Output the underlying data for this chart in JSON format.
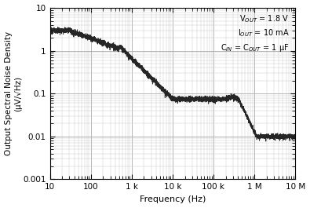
{
  "xlim": [
    10,
    10000000
  ],
  "ylim": [
    0.001,
    10
  ],
  "xlabel": "Frequency (Hz)",
  "ylabel": "Output Spectral Noise Density\n(μV/√Hz)",
  "annotation_lines": [
    "V$_{OUT}$ = 1.8 V",
    "I$_{OUT}$ = 10 mA",
    "C$_{IN}$ = C$_{OUT}$ = 1 μF"
  ],
  "xtick_labels": {
    "10": "10",
    "100": "100",
    "1000": "1 k",
    "10000": "10 k",
    "100000": "100 k",
    "1000000": "1 M",
    "10000000": "10 M"
  },
  "ytick_labels": {
    "10": "10",
    "1": "1",
    "0.1": "0.1",
    "0.01": "0.01",
    "0.001": "0.001"
  },
  "line_color": "#1a1a1a",
  "background_color": "#ffffff",
  "grid_major_color": "#aaaaaa",
  "grid_minor_color": "#cccccc"
}
